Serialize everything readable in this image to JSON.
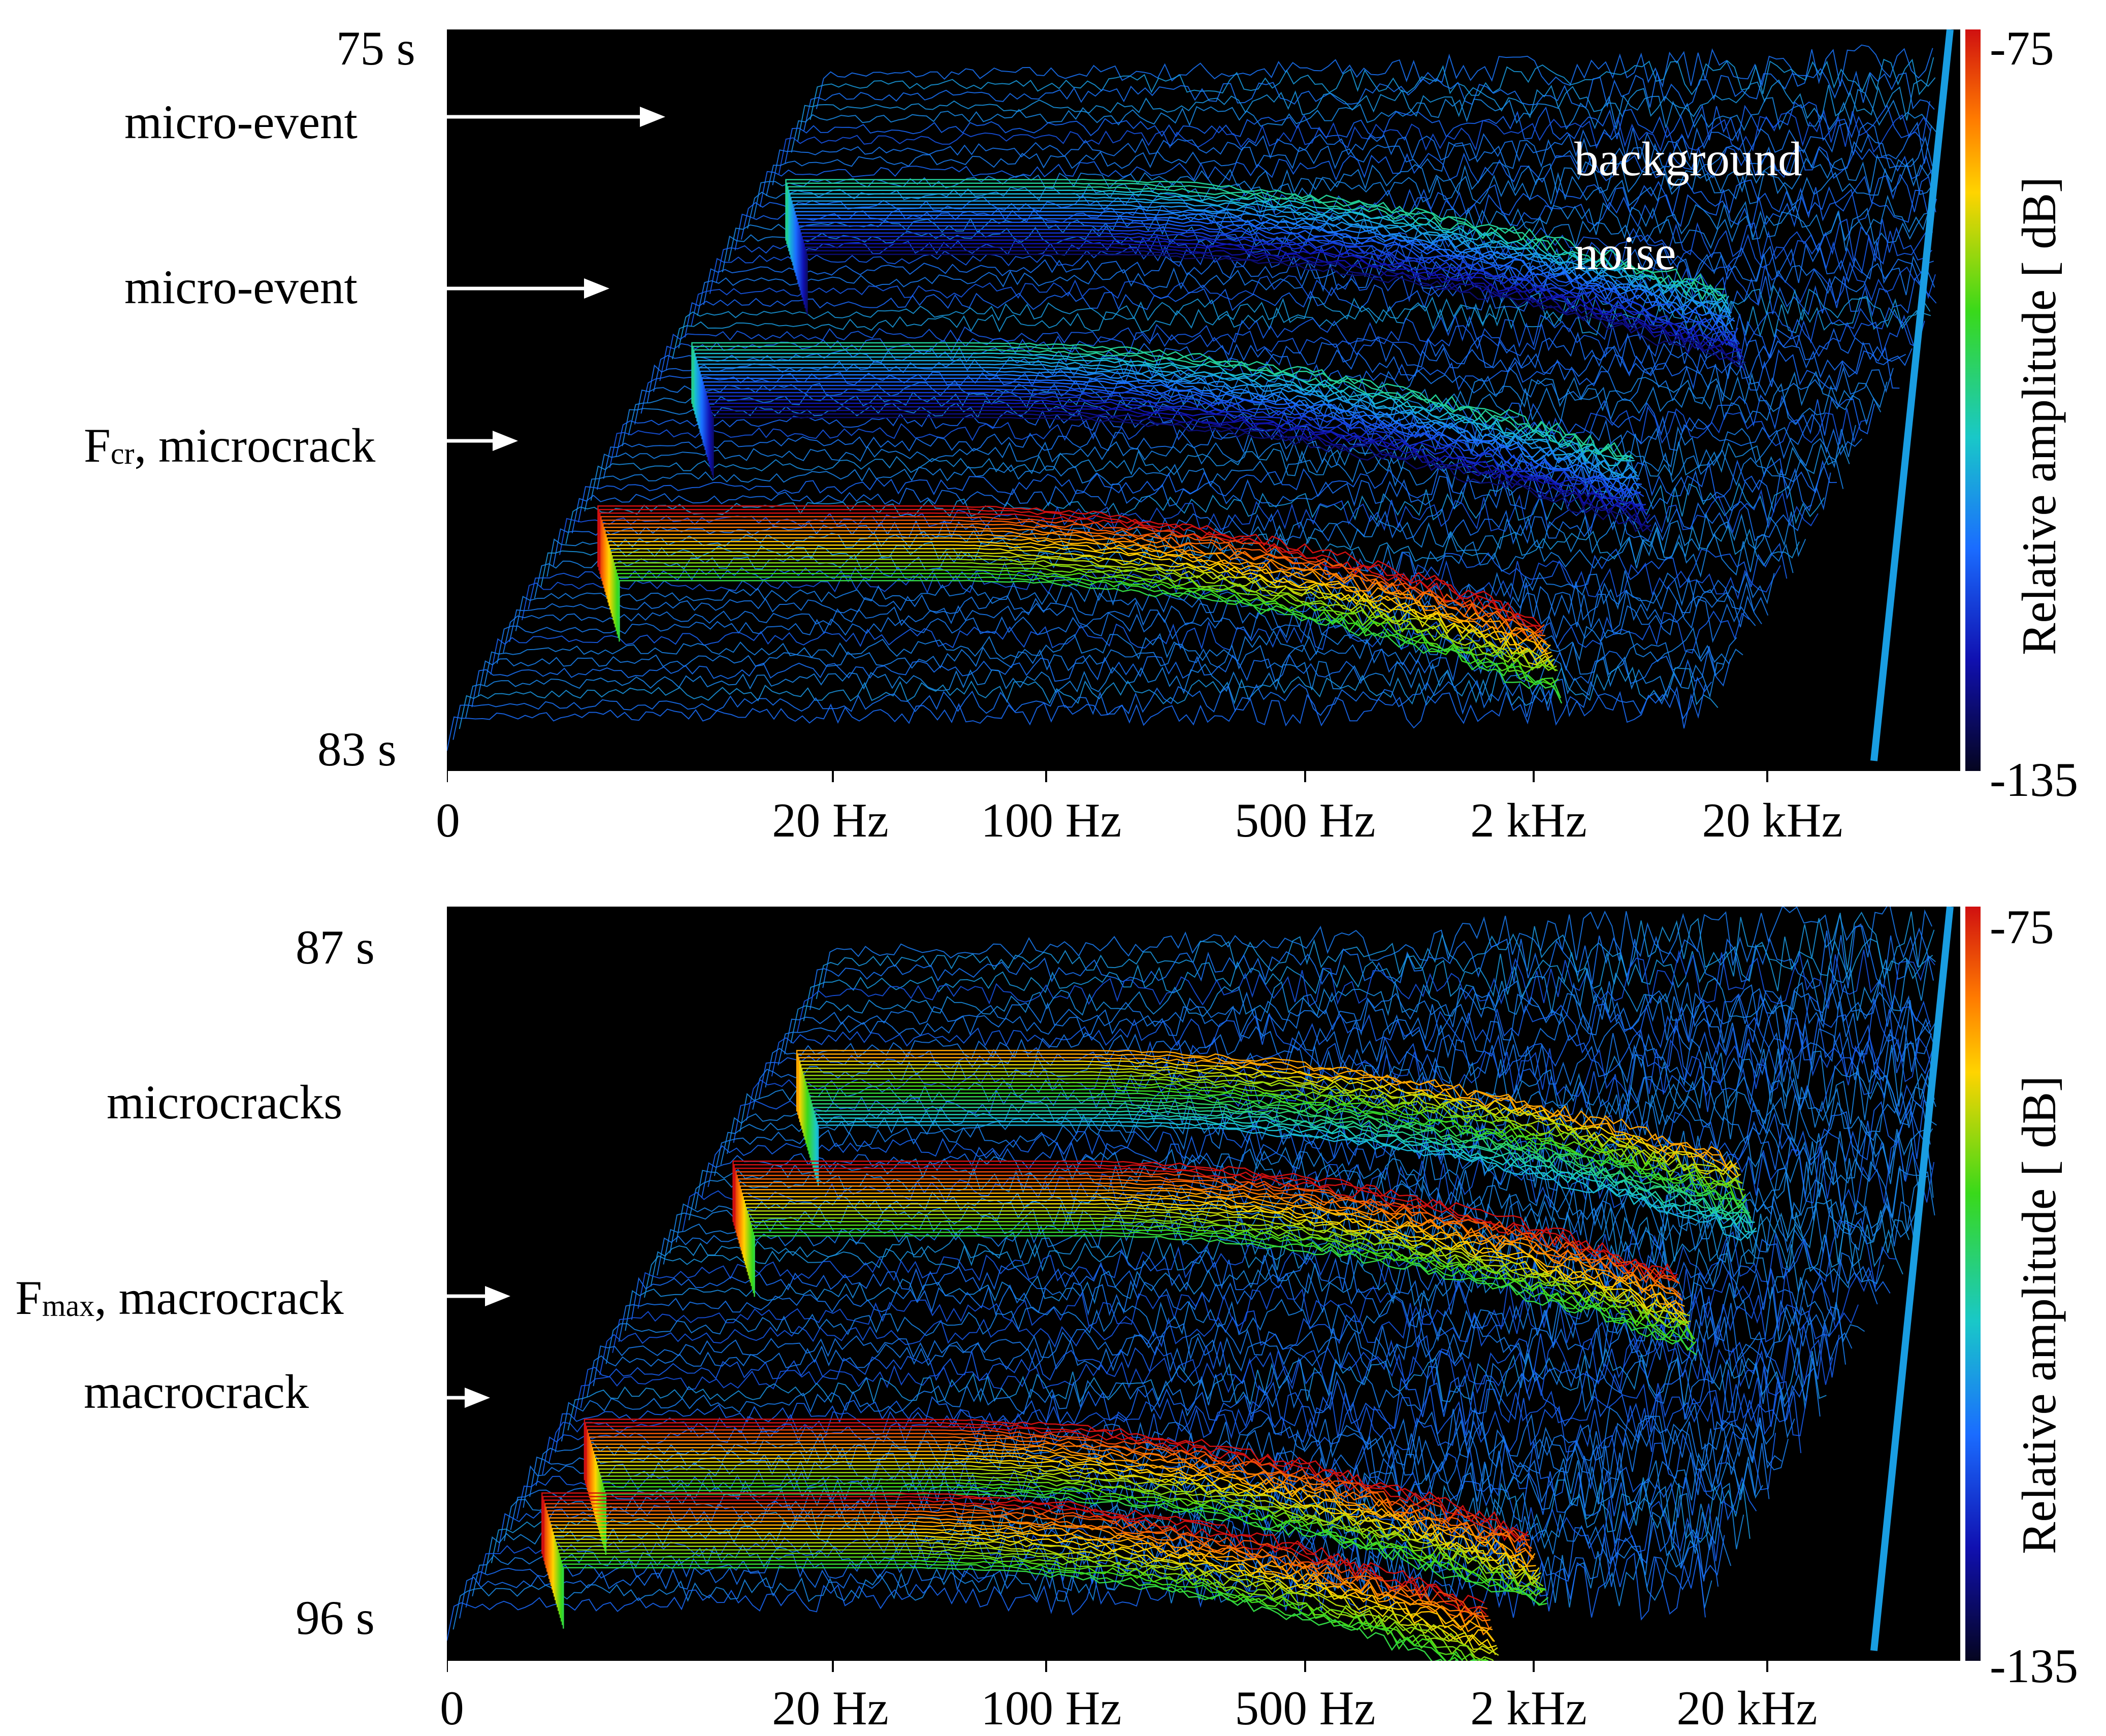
{
  "chart_data": [
    {
      "type": "waterfall",
      "time_start_label": "75 s",
      "time_end_label": "83 s",
      "x_ticks": [
        "0",
        "20 Hz",
        "100 Hz",
        "500 Hz",
        "2 kHz",
        "20 kHz"
      ],
      "colorbar": {
        "label": "Relative amplitude [ dB]",
        "max": "-75",
        "min": "-135"
      },
      "annotations": [
        {
          "label": "micro-event",
          "time_s": 76
        },
        {
          "label": "micro-event",
          "time_s": 78
        },
        {
          "label_main": "F",
          "label_sub": "cr",
          "label_rest": ", microcrack",
          "time_s": 80
        }
      ],
      "inplot_text": [
        "background",
        "noise"
      ],
      "series": [
        {
          "label": "micro-event",
          "time_s": 76,
          "level_db": -105
        },
        {
          "label": "micro-event",
          "time_s": 78,
          "level_db": -105
        },
        {
          "label": "microcrack",
          "time_s": 80,
          "level_db": -75
        }
      ]
    },
    {
      "type": "waterfall",
      "time_start_label": "87 s",
      "time_end_label": "96 s",
      "x_ticks": [
        "0",
        "20 Hz",
        "100 Hz",
        "500 Hz",
        "2 kHz",
        "20 kHz"
      ],
      "colorbar": {
        "label": "Relative amplitude [ dB]",
        "max": "-75",
        "min": "-135"
      },
      "annotations": [
        {
          "label": "microcracks",
          "time_s": 89.5
        },
        {
          "label_main": "F",
          "label_sub": "max",
          "label_rest": ", macrocrack",
          "time_s": 93
        },
        {
          "label": "macrocrack",
          "time_s": 94
        }
      ],
      "series": [
        {
          "label": "microcracks",
          "time_s": 88,
          "level_db": -85
        },
        {
          "label": "microcracks",
          "time_s": 89.5,
          "level_db": -75
        },
        {
          "label": "macrocrack",
          "time_s": 93,
          "level_db": -75
        },
        {
          "label": "macrocrack",
          "time_s": 94,
          "level_db": -75
        }
      ]
    }
  ]
}
